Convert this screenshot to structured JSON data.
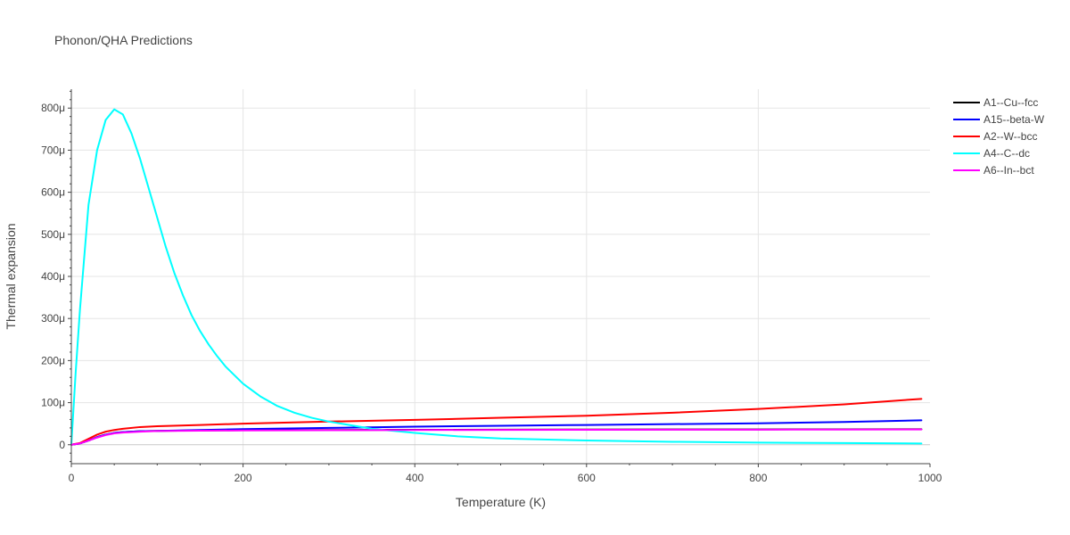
{
  "chart_data": {
    "type": "line",
    "title": "Phonon/QHA Predictions",
    "xlabel": "Temperature (K)",
    "ylabel": "Thermal expansion",
    "xlim": [
      0,
      1000
    ],
    "ylim": [
      -45,
      845
    ],
    "x_ticks": [
      0,
      200,
      400,
      600,
      800,
      1000
    ],
    "x_tick_labels": [
      "0",
      "200",
      "400",
      "600",
      "800",
      "1000"
    ],
    "y_ticks": [
      0,
      100,
      200,
      300,
      400,
      500,
      600,
      700,
      800
    ],
    "y_tick_labels": [
      "0",
      "100μ",
      "200μ",
      "300μ",
      "400μ",
      "500μ",
      "600μ",
      "700μ",
      "800μ"
    ],
    "grid": true,
    "legend_position": "top-right",
    "series": [
      {
        "name": "A1--Cu--fcc",
        "color": "#000000",
        "x": [
          0,
          10,
          20,
          30,
          40,
          50,
          60,
          80,
          100,
          150,
          200,
          300,
          400,
          500,
          600,
          700,
          800,
          900,
          990
        ],
        "y": [
          0,
          3,
          10,
          18,
          24,
          28,
          30,
          32,
          33,
          34,
          34.5,
          35,
          35.5,
          35.8,
          36,
          36.2,
          36.4,
          36.6,
          36.8
        ]
      },
      {
        "name": "A15--beta-W",
        "color": "#0000ff",
        "x": [
          0,
          10,
          20,
          30,
          40,
          50,
          60,
          80,
          100,
          150,
          200,
          300,
          400,
          500,
          600,
          700,
          800,
          900,
          990
        ],
        "y": [
          0,
          3,
          10,
          18,
          24,
          28,
          30,
          32,
          33,
          35,
          37,
          40,
          43,
          45,
          47,
          49,
          51,
          54,
          58
        ]
      },
      {
        "name": "A2--W--bcc",
        "color": "#ff0000",
        "x": [
          0,
          10,
          20,
          30,
          40,
          50,
          60,
          80,
          100,
          150,
          200,
          300,
          400,
          500,
          600,
          700,
          800,
          900,
          990
        ],
        "y": [
          0,
          4,
          14,
          24,
          31,
          35,
          38,
          42,
          44,
          47,
          50,
          55,
          59,
          64,
          69,
          76,
          85,
          96,
          109
        ]
      },
      {
        "name": "A4--C--dc",
        "color": "#00ffff",
        "x": [
          0,
          5,
          10,
          20,
          30,
          40,
          50,
          60,
          70,
          80,
          90,
          100,
          110,
          120,
          130,
          140,
          150,
          160,
          170,
          180,
          200,
          220,
          240,
          260,
          280,
          300,
          350,
          400,
          450,
          500,
          600,
          700,
          800,
          900,
          990
        ],
        "y": [
          0,
          170,
          320,
          570,
          700,
          772,
          797,
          785,
          740,
          680,
          610,
          540,
          470,
          408,
          355,
          308,
          270,
          238,
          210,
          185,
          145,
          115,
          92,
          76,
          64,
          55,
          38,
          28,
          20,
          15,
          10,
          7,
          5,
          4,
          3
        ]
      },
      {
        "name": "A6--In--bct",
        "color": "#ff00ff",
        "x": [
          0,
          10,
          20,
          30,
          40,
          50,
          60,
          80,
          100,
          150,
          200,
          300,
          400,
          500,
          600,
          700,
          800,
          900,
          990
        ],
        "y": [
          0,
          3,
          10,
          17,
          23,
          27,
          29,
          31,
          32.5,
          33.5,
          34,
          34.5,
          35,
          35.3,
          35.5,
          35.7,
          35.9,
          36.1,
          36.3
        ]
      }
    ]
  }
}
